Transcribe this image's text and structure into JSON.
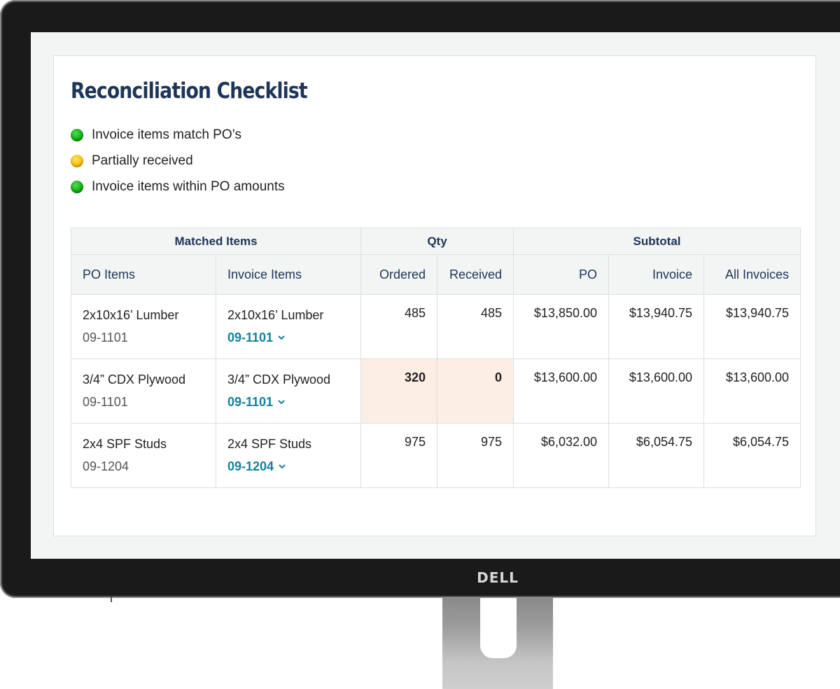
{
  "brand": {
    "logo_text": "DELL"
  },
  "page": {
    "title": "Reconciliation Checklist",
    "checklist": [
      {
        "label": "Invoice items match PO’s",
        "status": "green"
      },
      {
        "label": "Partially received",
        "status": "yellow"
      },
      {
        "label": "Invoice items within PO amounts",
        "status": "green"
      }
    ]
  },
  "colors": {
    "title": "#1d3557",
    "link": "#12829a",
    "highlight": "#fdeee3",
    "warning_value": "#ee6b00",
    "ok": "#0b9d0b",
    "partial": "#f2b600"
  },
  "table": {
    "groups": {
      "matched": "Matched Items",
      "qty": "Qty",
      "subtotal": "Subtotal"
    },
    "columns": {
      "po_items": "PO Items",
      "invoice_items": "Invoice Items",
      "ordered": "Ordered",
      "received": "Received",
      "po": "PO",
      "invoice": "Invoice",
      "all_invoices": "All Invoices"
    },
    "rows": [
      {
        "po_item": "2x10x16’ Lumber",
        "po_code": "09-1101",
        "invoice_item": "2x10x16’ Lumber",
        "invoice_code": "09-1101",
        "ordered": "485",
        "received": "485",
        "po_subtotal": "$13,850.00",
        "invoice_subtotal": "$13,940.75",
        "all_invoices": "$13,940.75"
      },
      {
        "po_item": "3/4” CDX Plywood",
        "po_code": "09-1101",
        "invoice_item": "3/4” CDX Plywood",
        "invoice_code": "09-1101",
        "ordered": "320",
        "received": "0",
        "po_subtotal": "$13,600.00",
        "invoice_subtotal": "$13,600.00",
        "all_invoices": "$13,600.00"
      },
      {
        "po_item": "2x4 SPF Studs",
        "po_code": "09-1204",
        "invoice_item": "2x4 SPF Studs",
        "invoice_code": "09-1204",
        "ordered": "975",
        "received": "975",
        "po_subtotal": "$6,032.00",
        "invoice_subtotal": "$6,054.75",
        "all_invoices": "$6,054.75"
      }
    ]
  }
}
